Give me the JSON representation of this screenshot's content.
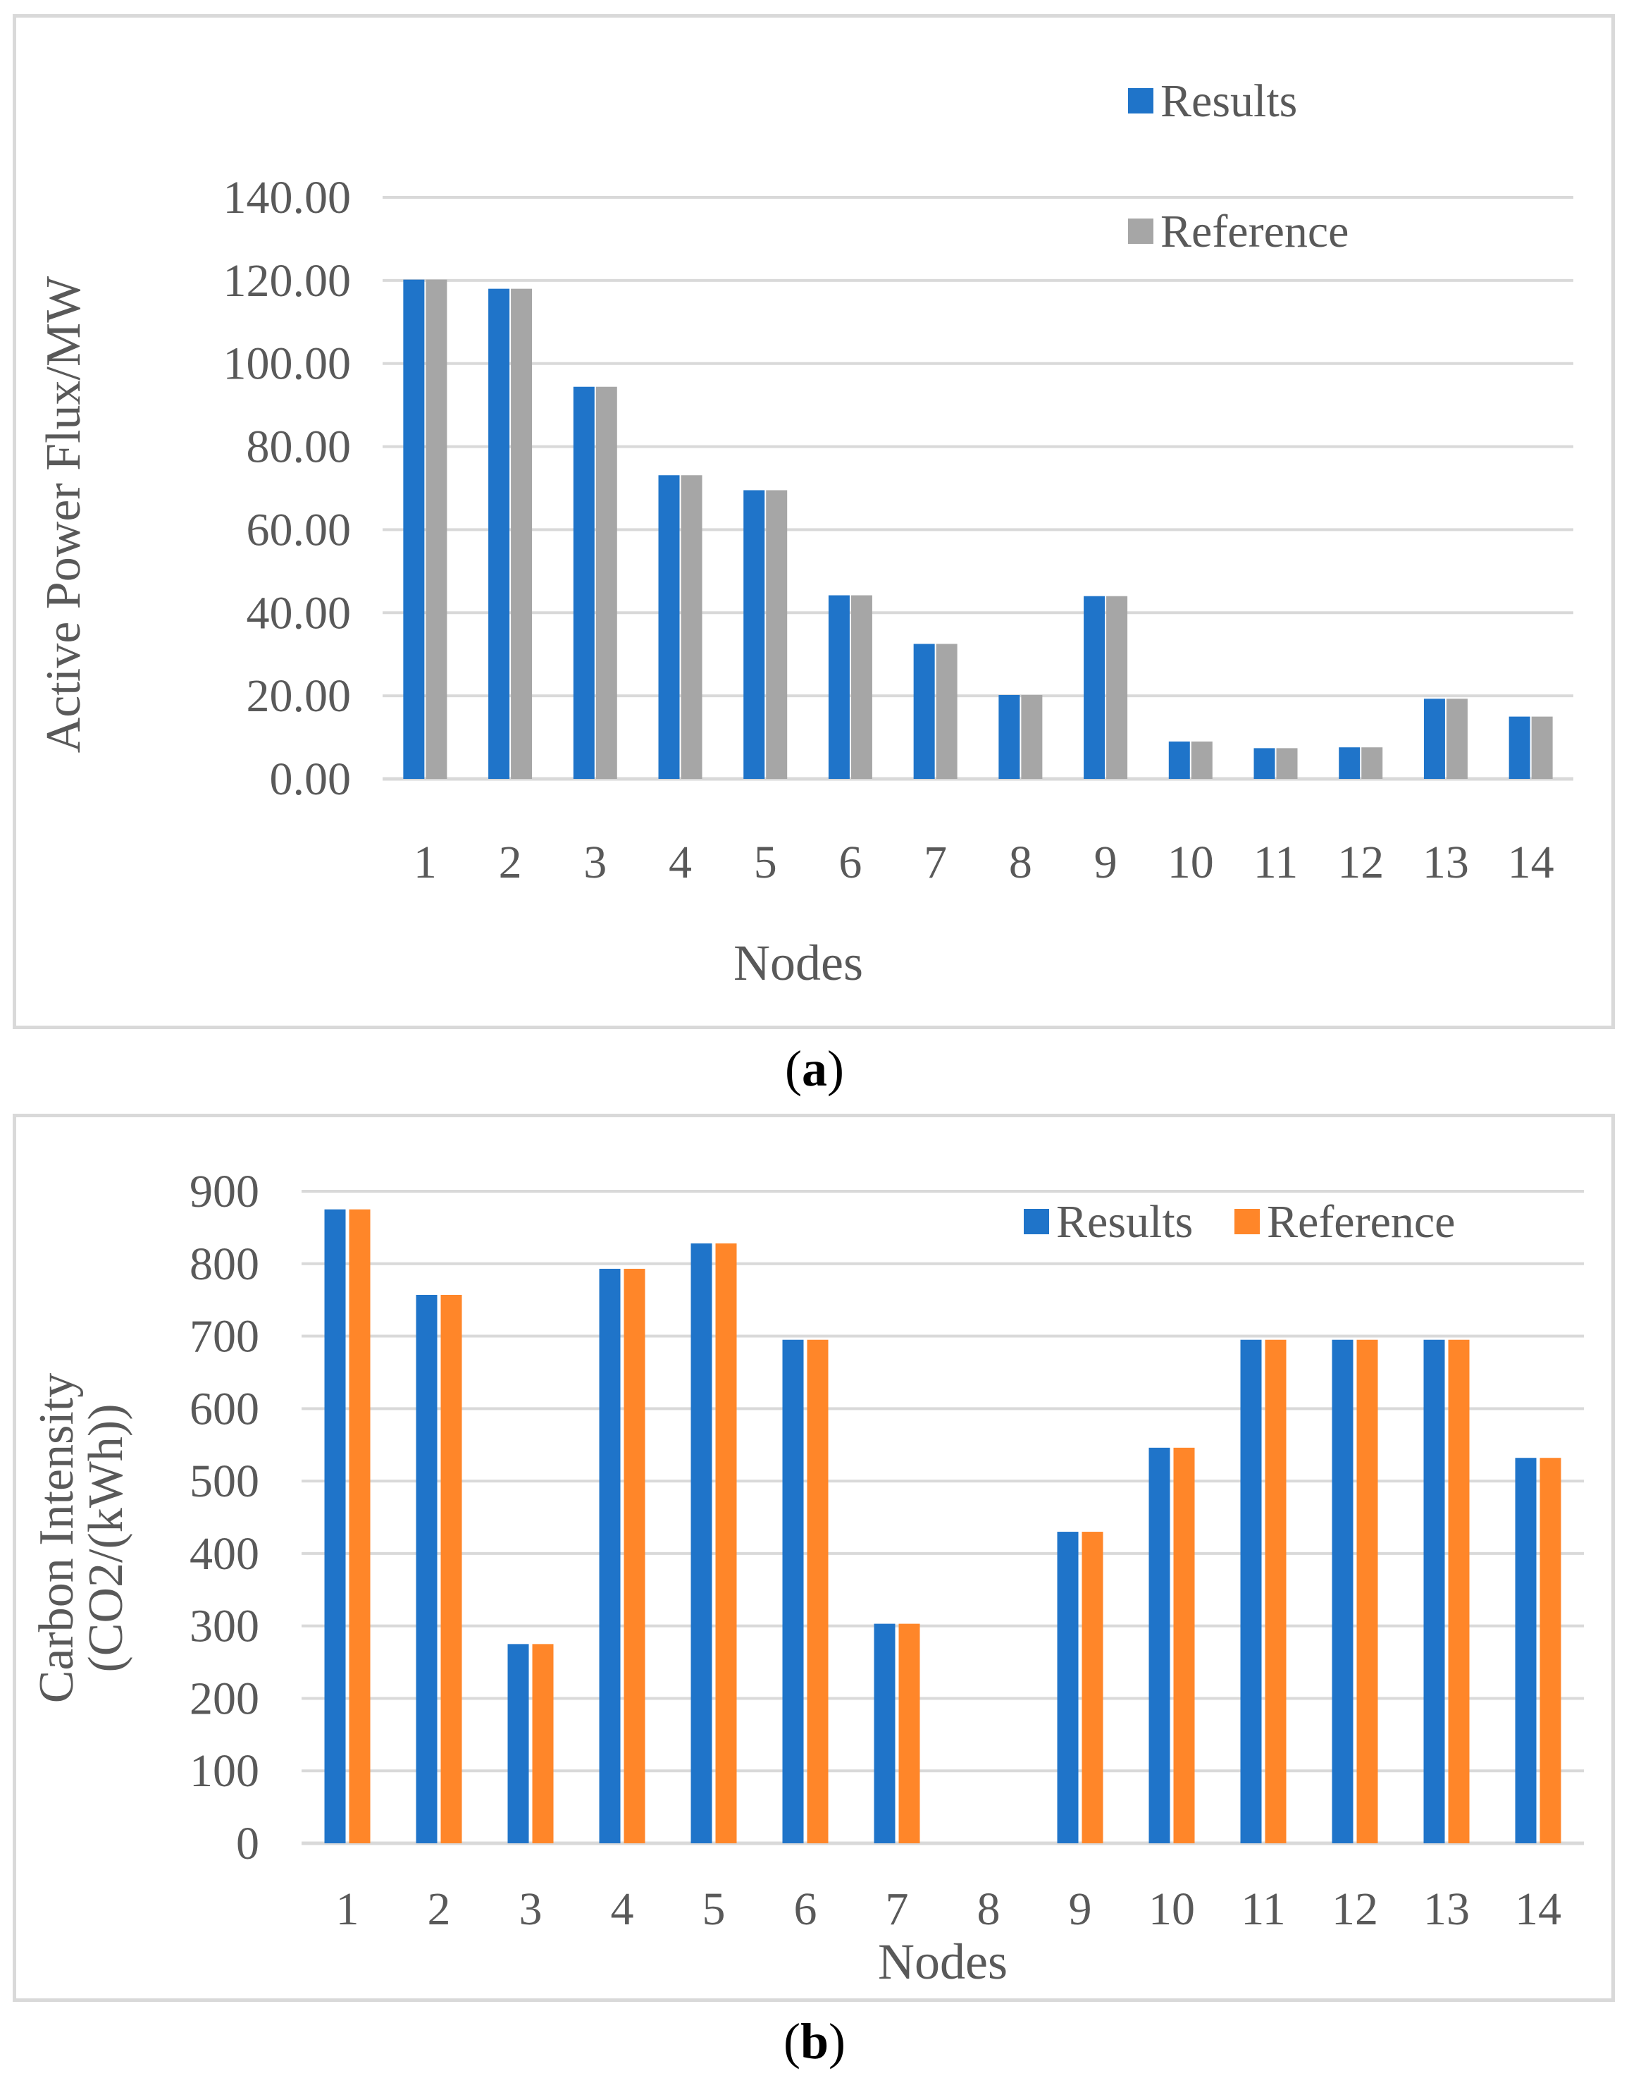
{
  "colors": {
    "results": "#1f74c9",
    "reference_a": "#a6a6a6",
    "reference_b": "#ff8629",
    "grid": "#d9d9d9",
    "text": "#595959"
  },
  "captions": {
    "a": "a",
    "b": "b"
  },
  "chart_data": [
    {
      "id": "a",
      "type": "bar",
      "title": "",
      "xlabel": "Nodes",
      "ylabel": "Active Power Flux/MW",
      "ylim": [
        0,
        140
      ],
      "yticks": [
        "0.00",
        "20.00",
        "40.00",
        "60.00",
        "80.00",
        "100.00",
        "120.00",
        "140.00"
      ],
      "legend_placement": "top-right",
      "categories": [
        "1",
        "2",
        "3",
        "4",
        "5",
        "6",
        "7",
        "8",
        "9",
        "10",
        "11",
        "12",
        "13",
        "14"
      ],
      "series": [
        {
          "name": "Results",
          "values": [
            120.2,
            118.0,
            94.4,
            73.1,
            69.5,
            44.2,
            32.5,
            20.2,
            44.0,
            9.0,
            7.4,
            7.6,
            19.3,
            15.0
          ]
        },
        {
          "name": "Reference",
          "values": [
            120.2,
            118.0,
            94.4,
            73.1,
            69.5,
            44.2,
            32.5,
            20.2,
            44.0,
            9.0,
            7.4,
            7.6,
            19.3,
            15.0
          ]
        }
      ]
    },
    {
      "id": "b",
      "type": "bar",
      "title": "",
      "xlabel": "Nodes",
      "ylabel": [
        "Carbon Intensity",
        "(CO2/(kWh))"
      ],
      "ylim": [
        0,
        900
      ],
      "yticks": [
        "0",
        "100",
        "200",
        "300",
        "400",
        "500",
        "600",
        "700",
        "800",
        "900"
      ],
      "legend_placement": "top-right",
      "categories": [
        "1",
        "2",
        "3",
        "4",
        "5",
        "6",
        "7",
        "8",
        "9",
        "10",
        "11",
        "12",
        "13",
        "14"
      ],
      "series": [
        {
          "name": "Results",
          "values": [
            875,
            757,
            275,
            793,
            828,
            695,
            303,
            0,
            430,
            546,
            695,
            695,
            695,
            532
          ]
        },
        {
          "name": "Reference",
          "values": [
            875,
            757,
            275,
            793,
            828,
            695,
            303,
            0,
            430,
            546,
            695,
            695,
            695,
            532
          ]
        }
      ]
    }
  ]
}
